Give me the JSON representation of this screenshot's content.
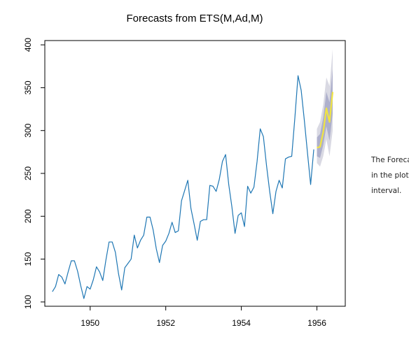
{
  "chart_data": {
    "type": "line",
    "title": "Forecasts from ETS(M,Ad,M)",
    "xlabel": "",
    "ylabel": "",
    "xlim": [
      1948.8,
      1956.75
    ],
    "ylim": [
      95,
      405
    ],
    "x_ticks": [
      1950,
      1952,
      1954,
      1956
    ],
    "y_ticks": [
      100,
      150,
      200,
      250,
      300,
      350,
      400
    ],
    "grid": false,
    "series": [
      {
        "name": "",
        "color": "#1f77b4",
        "x": [
          1949.0,
          1949.0833,
          1949.1667,
          1949.25,
          1949.3333,
          1949.4167,
          1949.5,
          1949.5833,
          1949.6667,
          1949.75,
          1949.8333,
          1949.9167,
          1950.0,
          1950.0833,
          1950.1667,
          1950.25,
          1950.3333,
          1950.4167,
          1950.5,
          1950.5833,
          1950.6667,
          1950.75,
          1950.8333,
          1950.9167,
          1951.0,
          1951.0833,
          1951.1667,
          1951.25,
          1951.3333,
          1951.4167,
          1951.5,
          1951.5833,
          1951.6667,
          1951.75,
          1951.8333,
          1951.9167,
          1952.0,
          1952.0833,
          1952.1667,
          1952.25,
          1952.3333,
          1952.4167,
          1952.5,
          1952.5833,
          1952.6667,
          1952.75,
          1952.8333,
          1952.9167,
          1953.0,
          1953.0833,
          1953.1667,
          1953.25,
          1953.3333,
          1953.4167,
          1953.5,
          1953.5833,
          1953.6667,
          1953.75,
          1953.8333,
          1953.9167,
          1954.0,
          1954.0833,
          1954.1667,
          1954.25,
          1954.3333,
          1954.4167,
          1954.5,
          1954.5833,
          1954.6667,
          1954.75,
          1954.8333,
          1954.9167,
          1955.0,
          1955.0833,
          1955.1667,
          1955.25,
          1955.3333,
          1955.4167,
          1955.5,
          1955.5833,
          1955.6667,
          1955.75,
          1955.8333,
          1955.9167
        ],
        "y": [
          112,
          118,
          132,
          129,
          121,
          135,
          148,
          148,
          136,
          119,
          104,
          118,
          115,
          126,
          141,
          135,
          125,
          149,
          170,
          170,
          158,
          133,
          114,
          140,
          145,
          150,
          178,
          163,
          172,
          178,
          199,
          199,
          184,
          162,
          146,
          166,
          171,
          180,
          193,
          181,
          183,
          218,
          230,
          242,
          209,
          191,
          172,
          194,
          196,
          196,
          236,
          235,
          229,
          243,
          264,
          272,
          237,
          211,
          180,
          201,
          204,
          188,
          235,
          227,
          234,
          264,
          302,
          293,
          259,
          229,
          203,
          229,
          242,
          233,
          267,
          269,
          270,
          315,
          364,
          347,
          312,
          274,
          237,
          278
        ]
      },
      {
        "name": "",
        "color": "#f0e442",
        "x": [
          1956.0,
          1956.0833,
          1956.1667,
          1956.25,
          1956.3333,
          1956.4167
        ],
        "y": [
          280,
          281,
          298,
          326,
          310,
          345
        ]
      }
    ],
    "intervals": [
      {
        "level": 95,
        "color": "#d9d9e3",
        "x": [
          1956.0,
          1956.0833,
          1956.1667,
          1956.25,
          1956.3333,
          1956.4167
        ],
        "lower": [
          262,
          258,
          270,
          290,
          270,
          300
        ],
        "upper": [
          302,
          310,
          330,
          362,
          352,
          395
        ]
      },
      {
        "level": 80,
        "color": "#aeb0cc",
        "x": [
          1956.0,
          1956.0833,
          1956.1667,
          1956.25,
          1956.3333,
          1956.4167
        ],
        "lower": [
          270,
          268,
          283,
          305,
          288,
          320
        ],
        "upper": [
          292,
          296,
          315,
          345,
          333,
          372
        ]
      }
    ]
  },
  "caption": {
    "lines": [
      "The Forecast",
      "in the plot",
      "interval."
    ]
  }
}
